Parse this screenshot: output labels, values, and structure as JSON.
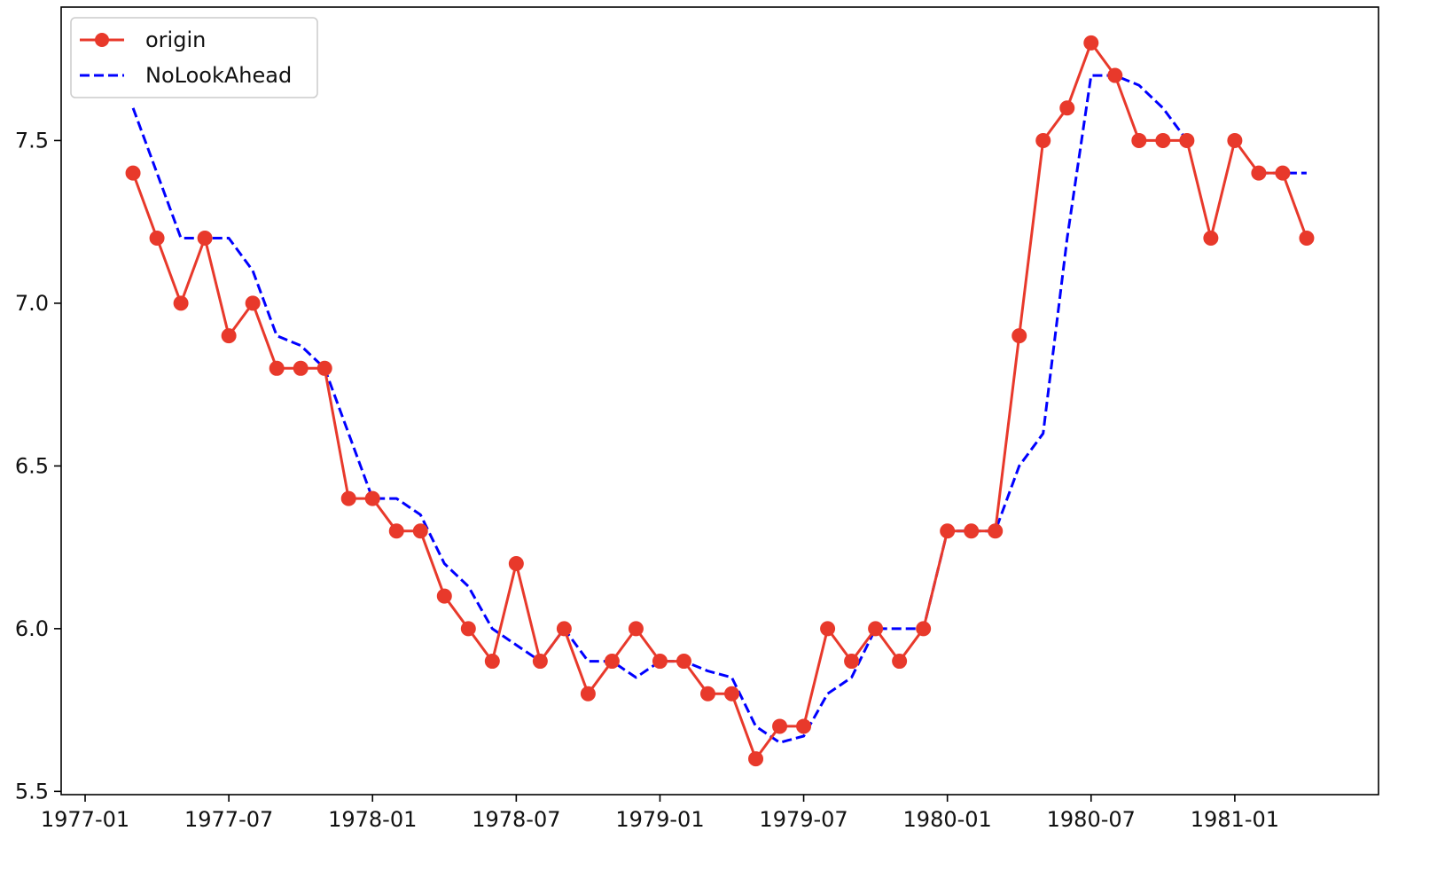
{
  "chart_data": {
    "type": "line",
    "title": "",
    "xlabel": "",
    "ylabel": "",
    "x_ticks": [
      "1977-01",
      "1977-07",
      "1978-01",
      "1978-07",
      "1979-01",
      "1979-07",
      "1980-01",
      "1980-07",
      "1981-01"
    ],
    "y_ticks": [
      "5.5",
      "6.0",
      "6.5",
      "7.0",
      "7.5"
    ],
    "x_range": [
      "1976-12",
      "1981-07"
    ],
    "ylim": [
      5.49,
      7.91
    ],
    "grid": false,
    "legend_position": "top-left",
    "x": [
      "1977-03",
      "1977-04",
      "1977-05",
      "1977-06",
      "1977-07",
      "1977-08",
      "1977-09",
      "1977-10",
      "1977-11",
      "1977-12",
      "1978-01",
      "1978-02",
      "1978-03",
      "1978-04",
      "1978-05",
      "1978-06",
      "1978-07",
      "1978-08",
      "1978-09",
      "1978-10",
      "1978-11",
      "1978-12",
      "1979-01",
      "1979-02",
      "1979-03",
      "1979-04",
      "1979-05",
      "1979-06",
      "1979-07",
      "1979-08",
      "1979-09",
      "1979-10",
      "1979-11",
      "1979-12",
      "1980-01",
      "1980-02",
      "1980-03",
      "1980-04",
      "1980-05",
      "1980-06",
      "1980-07",
      "1980-08",
      "1980-09",
      "1980-10",
      "1980-11",
      "1980-12",
      "1981-01",
      "1981-02",
      "1981-03",
      "1981-04"
    ],
    "series": [
      {
        "name": "origin",
        "color": "#e8392b",
        "style": "solid",
        "marker": "circle",
        "values": [
          7.4,
          7.2,
          7.0,
          7.2,
          6.9,
          7.0,
          6.8,
          6.8,
          6.8,
          6.4,
          6.4,
          6.3,
          6.3,
          6.1,
          6.0,
          5.9,
          6.2,
          5.9,
          6.0,
          5.8,
          5.9,
          6.0,
          5.9,
          5.9,
          5.8,
          5.8,
          5.6,
          5.7,
          5.7,
          6.0,
          5.9,
          6.0,
          5.9,
          6.0,
          6.3,
          6.3,
          6.3,
          6.9,
          7.5,
          7.6,
          7.8,
          7.7,
          7.5,
          7.5,
          7.5,
          7.2,
          7.5,
          7.4,
          7.4,
          7.2
        ]
      },
      {
        "name": "NoLookAhead",
        "color": "#0000ff",
        "style": "dashed",
        "marker": "none",
        "values": [
          7.6,
          7.4,
          7.2,
          7.2,
          7.2,
          7.1,
          6.9,
          6.87,
          6.8,
          6.6,
          6.4,
          6.4,
          6.35,
          6.2,
          6.13,
          6.0,
          5.95,
          5.9,
          6.0,
          5.9,
          5.9,
          5.85,
          5.9,
          5.9,
          5.87,
          5.85,
          5.7,
          5.65,
          5.67,
          5.8,
          5.85,
          6.0,
          6.0,
          6.0,
          6.3,
          6.3,
          6.3,
          6.5,
          6.6,
          7.2,
          7.7,
          7.7,
          7.67,
          7.6,
          7.5,
          null,
          null,
          7.4,
          7.4,
          7.4
        ]
      }
    ]
  }
}
